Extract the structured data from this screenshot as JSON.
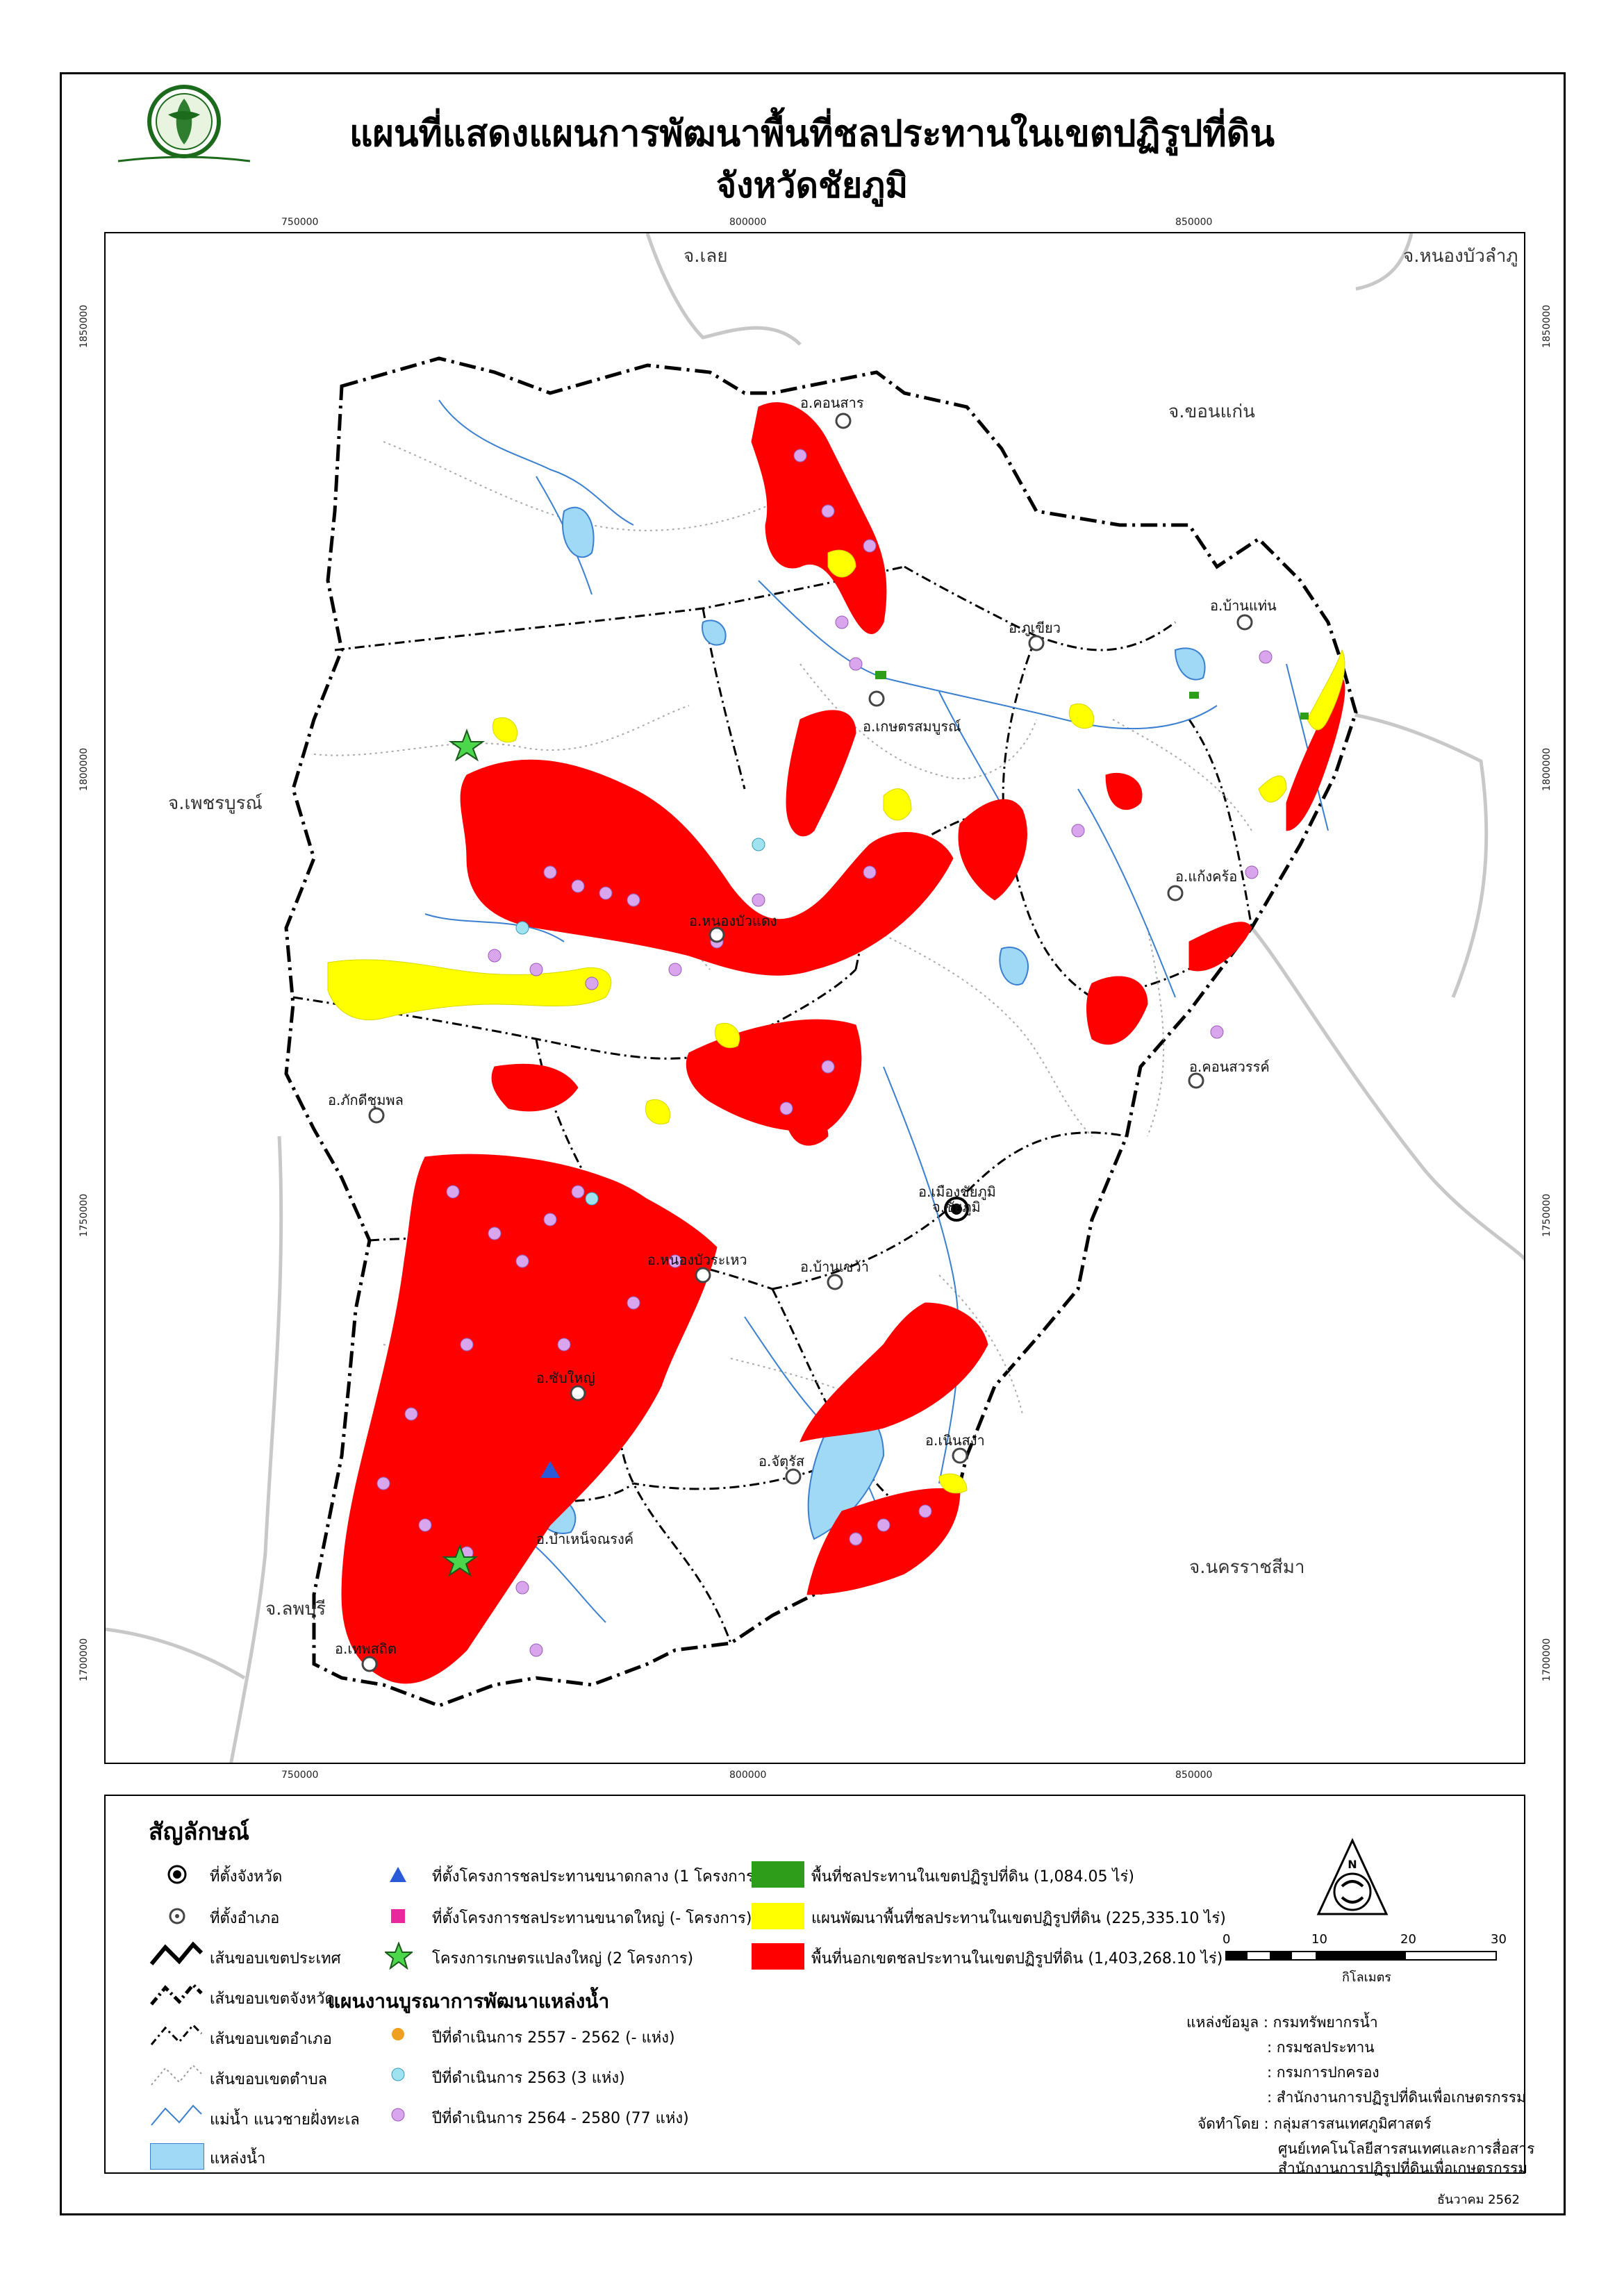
{
  "title_line1": "แผนที่แสดงแผนการพัฒนาพื้นที่ชลประทานในเขตปฏิรูปที่ดิน",
  "title_line2": "จังหวัดชัยภูมิ",
  "logo_text": "สำนักงานการปฏิรูปที่ดินเพื่อเกษตรกรรม",
  "grid_top": [
    "750000",
    "800000",
    "850000"
  ],
  "grid_bottom": [
    "750000",
    "800000",
    "850000"
  ],
  "grid_left": [
    "1850000",
    "1800000",
    "1750000",
    "1700000"
  ],
  "grid_right": [
    "1850000",
    "1800000",
    "1750000",
    "1700000"
  ],
  "neighbors": {
    "loei": "จ.เลย",
    "nongbualamphu": "จ.หนองบัวลำภู",
    "khonkaen": "จ.ขอนแก่น",
    "phetchabun": "จ.เพชรบูรณ์",
    "lopburi": "จ.ลพบุรี",
    "nakhonratchasima": "จ.นครราชสีมา"
  },
  "districts": {
    "khonsan": "อ.คอนสาร",
    "phukhiao": "อ.ภูเขียว",
    "banthaen": "อ.บ้านแท่น",
    "kasetsombun": "อ.เกษตรสมบูรณ์",
    "khonsawan_k": "อ.แก้งคร้อ",
    "nongbuadaeng": "อ.หนองบัวแดง",
    "phakdichumphon": "อ.ภักดีชุมพล",
    "khonsawan": "อ.คอนสวรรค์",
    "mueang": "อ.เมืองชัยภูมิ",
    "nongbuarawe": "อ.หนองบัวระเหว",
    "bankhwao": "อ.บ้านเขว้า",
    "thepsathit": "อ.เทพสถิต",
    "noenasanga": "อ.เนินสง่า",
    "chatturat": "อ.จัตุรัส",
    "bamnetnarong": "อ.บำเหน็จณรงค์",
    "thepsathit2": "อ.ซับใหญ่",
    "chaiyaphum": "จ.ชัยภูมิ"
  },
  "legend": {
    "title": "สัญลักษณ์",
    "province_seat": "ที่ตั้งจังหวัด",
    "district_seat": "ที่ตั้งอำเภอ",
    "country_border": "เส้นขอบเขตประเทศ",
    "province_border": "เส้นขอบเขตจังหวัด",
    "district_border": "เส้นขอบเขตอำเภอ",
    "subdistrict_border": "เส้นขอบเขตตำบล",
    "river": "แม่น้ำ แนวชายฝั่งทะเล",
    "water": "แหล่งน้ำ",
    "medium_project": "ที่ตั้งโครงการชลประทานขนาดกลาง (1 โครงการ)",
    "large_project": "ที่ตั้งโครงการชลประทานขนาดใหญ่ (- โครงการ)",
    "big_farm": "โครงการเกษตรแปลงใหญ่ (2 โครงการ)",
    "plan_title": "แผนงานบูรณาการพัฒนาแหล่งน้ำ",
    "plan_1": "ปีที่ดำเนินการ 2557 - 2562 (- แห่ง)",
    "plan_2": "ปีที่ดำเนินการ 2563 (3 แห่ง)",
    "plan_3": "ปีที่ดำเนินการ 2564 - 2580 (77 แห่ง)",
    "green_area": "พื้นที่ชลประทานในเขตปฏิรูปที่ดิน (1,084.05 ไร่)",
    "yellow_area": "แผนพัฒนาพื้นที่ชลประทานในเขตปฏิรูปที่ดิน (225,335.10 ไร่)",
    "red_area": "พื้นที่นอกเขตชลประทานในเขตปฏิรูปที่ดิน (1,403,268.10 ไร่)",
    "scale_ticks": [
      "0",
      "10",
      "20",
      "30"
    ],
    "scale_unit": "กิโลเมตร",
    "source_label": "แหล่งข้อมูล : กรมทรัพยากรน้ำ",
    "source_2": ": กรมชลประทาน",
    "source_3": ": กรมการปกครอง",
    "source_4": ": สำนักงานการปฏิรูปที่ดินเพื่อเกษตรกรรม",
    "made_by": "จัดทำโดย : กลุ่มสารสนเทศภูมิศาสตร์",
    "made_by_2": "ศูนย์เทคโนโลยีสารสนเทศและการสื่อสาร",
    "made_by_3": "สำนักงานการปฏิรูปที่ดินเพื่อเกษตรกรรม"
  },
  "date": "ธันวาคม 2562",
  "colors": {
    "red": "#ff0000",
    "yellow": "#ffff00",
    "green": "#2e9d1a",
    "water": "#9fd9f5",
    "river": "#3a7fd0",
    "pink": "#e85cf0",
    "purple": "#d9a6ee"
  }
}
